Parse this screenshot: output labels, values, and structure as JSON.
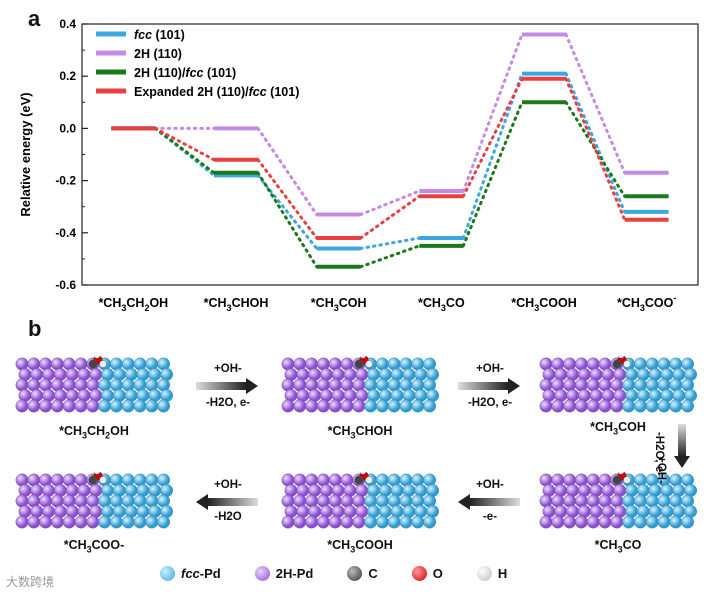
{
  "panel_a_letter": "a",
  "panel_b_letter": "b",
  "chart_data": {
    "type": "line",
    "title": "",
    "xlabel": "",
    "ylabel": "Relative energy (eV)",
    "ylim": [
      -0.6,
      0.4
    ],
    "yticks": [
      "0.4",
      "0.2",
      "0.0",
      "-0.2",
      "-0.4",
      "-0.6"
    ],
    "categories": [
      "*CH3CH2OH",
      "*CH3CHOH",
      "*CH3COH",
      "*CH3CO",
      "*CH3COOH",
      "*CH3COO-"
    ],
    "series": [
      {
        "name": "fcc (101)",
        "color": "#3ba7e0",
        "values": [
          0.0,
          -0.18,
          -0.46,
          -0.42,
          0.21,
          -0.32
        ]
      },
      {
        "name": "2H  (110)",
        "color": "#c48ae6",
        "values": [
          0.0,
          0.0,
          -0.33,
          -0.24,
          0.36,
          -0.17
        ]
      },
      {
        "name": "2H (110)/fcc (101)",
        "color": "#1a7a1a",
        "values": [
          0.0,
          -0.17,
          -0.53,
          -0.45,
          0.1,
          -0.26
        ]
      },
      {
        "name": "Expanded 2H (110)/fcc (101)",
        "color": "#e84040",
        "values": [
          0.0,
          -0.12,
          -0.42,
          -0.26,
          0.19,
          -0.35
        ]
      }
    ]
  },
  "legend": [
    {
      "pre": "",
      "italic": "fcc",
      "post": " (101)"
    },
    {
      "pre": "2H  (110)",
      "italic": "",
      "post": ""
    },
    {
      "pre": "2H (110)/",
      "italic": "fcc",
      "post": " (101)"
    },
    {
      "pre": "Expanded 2H (110)/",
      "italic": "fcc",
      "post": " (101)"
    }
  ],
  "xtick_labels": [
    [
      "*CH",
      "3",
      "CH",
      "2",
      "OH"
    ],
    [
      "*CH",
      "3",
      "CHOH"
    ],
    [
      "*CH",
      "3",
      "COH"
    ],
    [
      "*CH",
      "3",
      "CO"
    ],
    [
      "*CH",
      "3",
      "COOH"
    ],
    [
      "*CH",
      "3",
      "COO",
      "-",
      ""
    ]
  ],
  "steps": [
    {
      "name": "*CH",
      "sub": "3",
      "rest": "CH",
      "sub2": "2",
      "rest2": "OH"
    },
    {
      "name": "*CH",
      "sub": "3",
      "rest": "CHOH",
      "sub2": "",
      "rest2": ""
    },
    {
      "name": "*CH",
      "sub": "3",
      "rest": "COH",
      "sub2": "",
      "rest2": ""
    },
    {
      "name": "*CH",
      "sub": "3",
      "rest": "CO",
      "sub2": "",
      "rest2": ""
    },
    {
      "name": "*CH",
      "sub": "3",
      "rest": "COOH",
      "sub2": "",
      "rest2": ""
    },
    {
      "name": "*CH",
      "sub": "3",
      "rest": "COO-",
      "sub2": "",
      "rest2": ""
    }
  ],
  "arrows": [
    {
      "line1": "+OH-",
      "line2": "-H2O, e-"
    },
    {
      "line1": "+OH-",
      "line2": "-H2O, e-"
    },
    {
      "line1": "+OH-",
      "line2": "-H2O, e-"
    },
    {
      "line1": "+OH-",
      "line2": "-e-"
    },
    {
      "line1": "+OH-",
      "line2": "-H2O"
    }
  ],
  "atom_legend": [
    {
      "label": "fcc-Pd",
      "italic": "fcc",
      "rest": "-Pd",
      "color": "#5ec4ea"
    },
    {
      "label": "2H-Pd",
      "italic": "",
      "rest": "2H-Pd",
      "color": "#b07ae0"
    },
    {
      "label": "C",
      "italic": "",
      "rest": "C",
      "color": "#555555"
    },
    {
      "label": "O",
      "italic": "",
      "rest": "O",
      "color": "#e01818"
    },
    {
      "label": "H",
      "italic": "",
      "rest": "H",
      "color": "#eeeeee"
    }
  ],
  "watermark": "大数跨境"
}
